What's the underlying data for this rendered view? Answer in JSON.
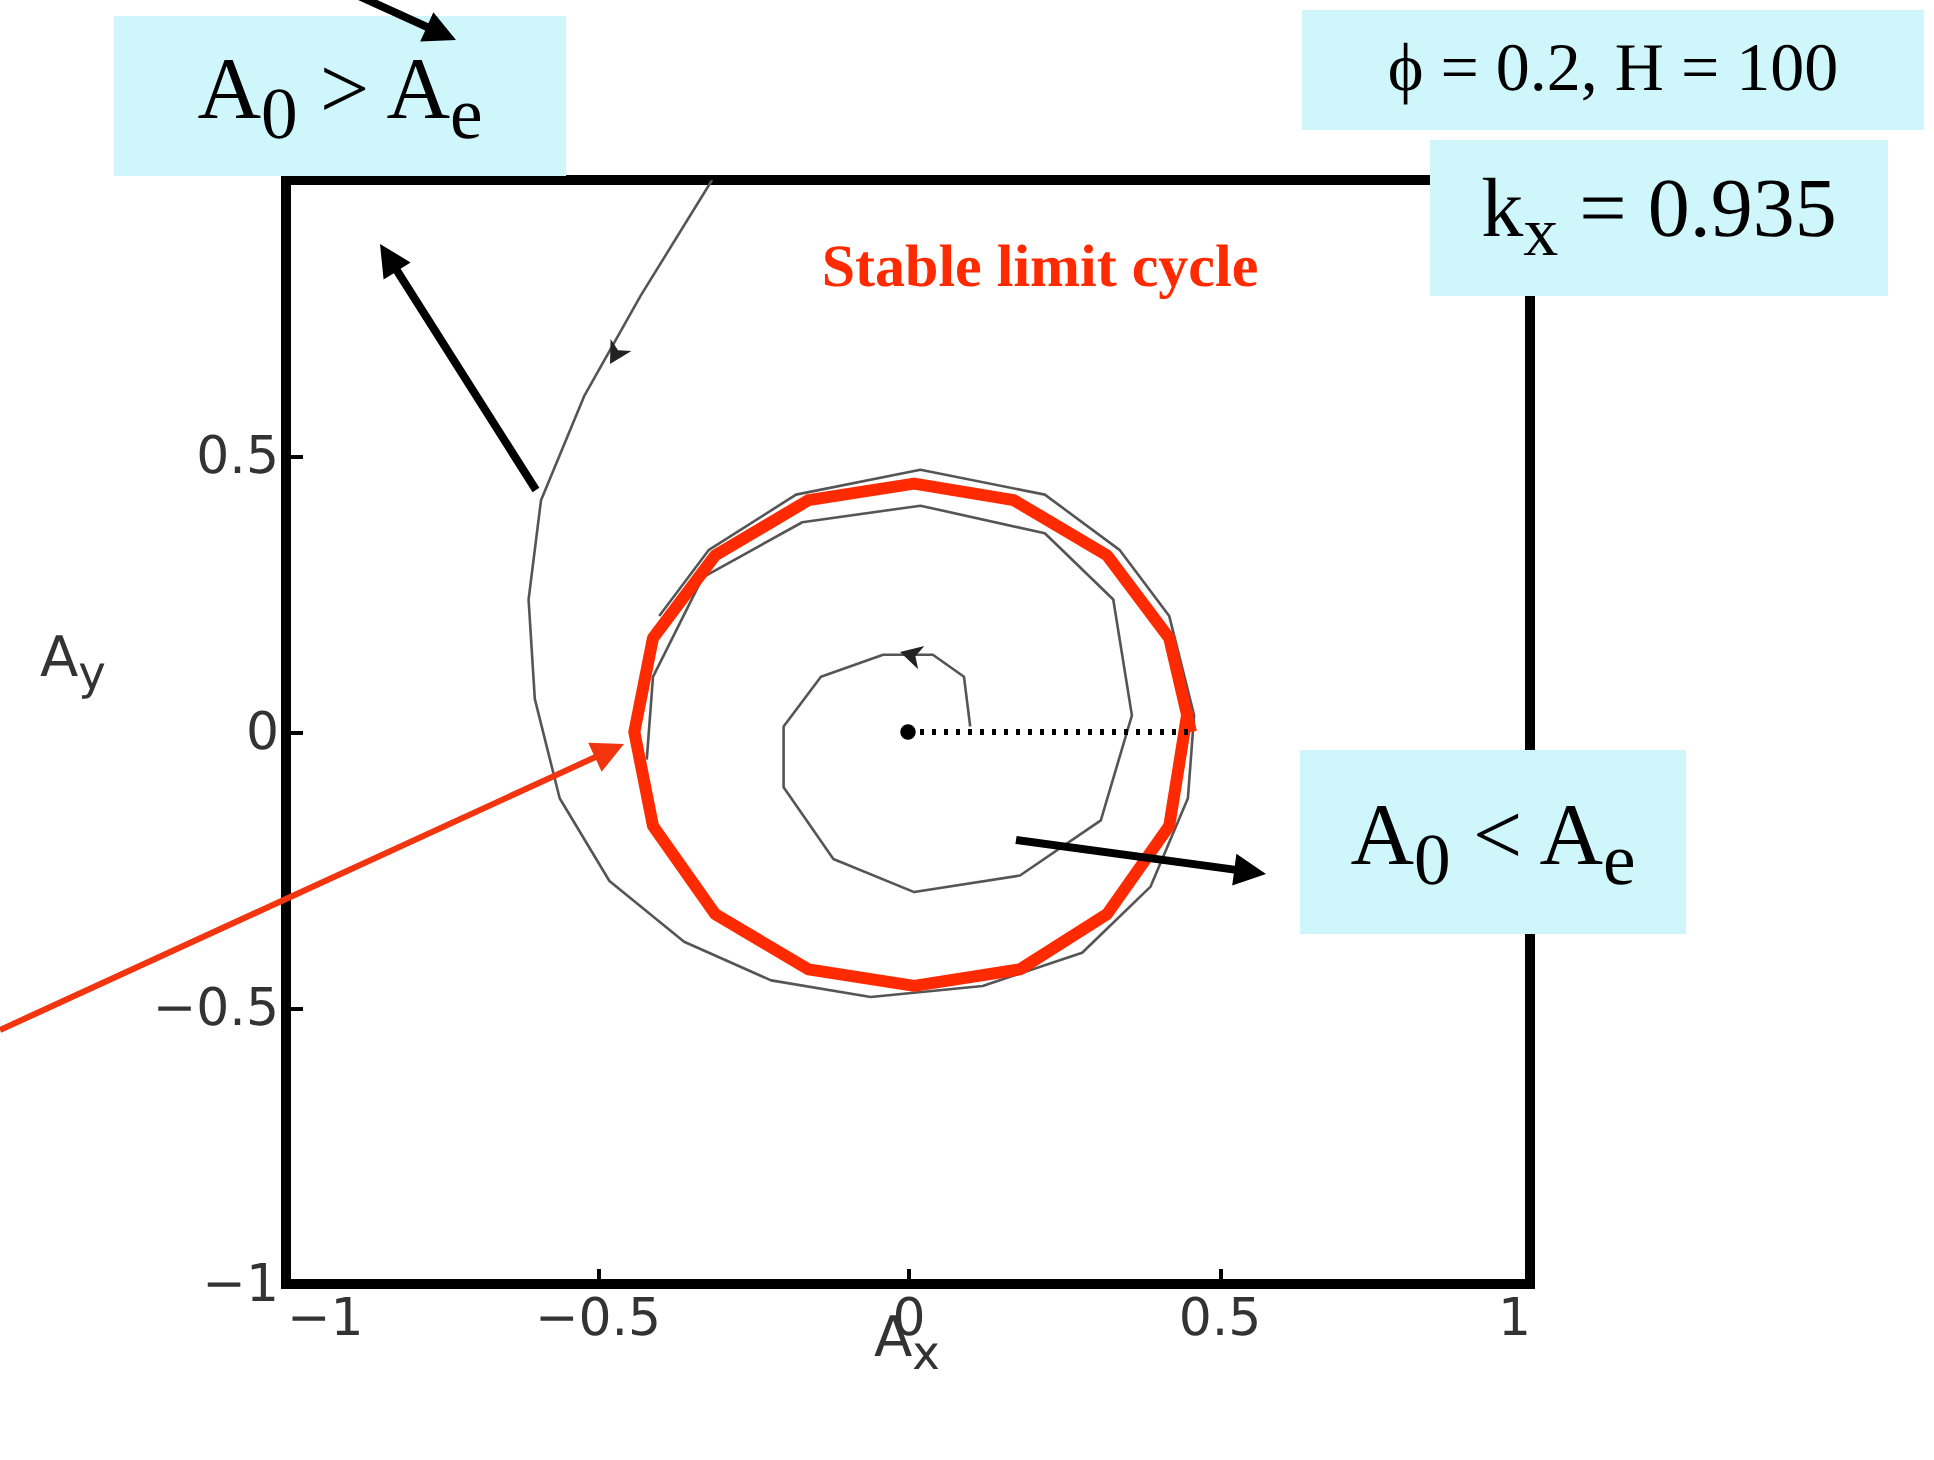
{
  "chart_data": {
    "type": "line",
    "xlabel": "A$_{x}$",
    "ylabel": "A$_{y}$",
    "xlim": [
      -1,
      1
    ],
    "ylim": [
      -1,
      1
    ],
    "xticks": [
      {
        "value": -1,
        "label": "−1"
      },
      {
        "value": -0.5,
        "label": "−0.5"
      },
      0,
      0.5,
      1
    ],
    "yticks": [
      {
        "value": -1,
        "label": "−1"
      },
      {
        "value": -0.5,
        "label": "−0.5"
      },
      0,
      0.5
    ],
    "grid": false,
    "annotations": [
      "A$_{0}$ > A$_{e}$",
      "ϕ = 0.2, H = 100",
      "k$_{x}$ = 0.935",
      "Stable limit cycle",
      "A$_{0}$ < A$_{e}$"
    ],
    "series": [
      {
        "color": "#555555",
        "line_style": "solid",
        "x": [
          -0.315,
          -0.43,
          -0.52,
          -0.59,
          -0.61,
          -0.6,
          -0.56,
          -0.48,
          -0.36,
          -0.22,
          -0.06,
          0.12,
          0.28,
          0.39,
          0.45,
          0.46,
          0.42,
          0.34,
          0.22,
          0.02,
          -0.18,
          -0.32,
          -0.4
        ],
        "values": [
          1,
          0.79,
          0.61,
          0.42,
          0.24,
          0.06,
          -0.12,
          -0.27,
          -0.38,
          -0.45,
          -0.48,
          -0.46,
          -0.4,
          -0.28,
          -0.12,
          0.03,
          0.21,
          0.33,
          0.43,
          0.475,
          0.43,
          0.33,
          0.21
        ]
      },
      {
        "color": "#555555",
        "line_style": "solid",
        "x": [
          0.1,
          0.09,
          0.04,
          -0.04,
          -0.14,
          -0.2,
          -0.2,
          -0.12,
          0.01,
          0.18,
          0.31,
          0.36,
          0.33,
          0.22,
          0.02,
          -0.17,
          -0.33,
          -0.41,
          -0.42
        ],
        "values": [
          0.01,
          0.1,
          0.14,
          0.14,
          0.1,
          0.01,
          -0.1,
          -0.23,
          -0.29,
          -0.26,
          -0.16,
          0.03,
          0.24,
          0.36,
          0.41,
          0.38,
          0.28,
          0.1,
          -0.05
        ]
      },
      {
        "color": "#ff2a00",
        "line_style": "solid",
        "x": [
          0.455,
          0.42,
          0.32,
          0.17,
          0.01,
          -0.16,
          -0.31,
          -0.41,
          -0.44,
          -0.41,
          -0.31,
          -0.16,
          0.01,
          0.18,
          0.32,
          0.42,
          0.45
        ],
        "values": [
          0,
          0.17,
          0.32,
          0.42,
          0.45,
          0.42,
          0.32,
          0.17,
          0,
          -0.17,
          -0.33,
          -0.43,
          -0.46,
          -0.43,
          -0.33,
          -0.17,
          0.04
        ]
      },
      {
        "color": "#000000",
        "line_style": "dotted",
        "x": [
          0,
          0.45
        ],
        "values": [
          0,
          0
        ]
      },
      {
        "type": "scatter",
        "color": "#000000",
        "marker": "circle",
        "x": [
          0
        ],
        "values": [
          0
        ]
      }
    ]
  }
}
